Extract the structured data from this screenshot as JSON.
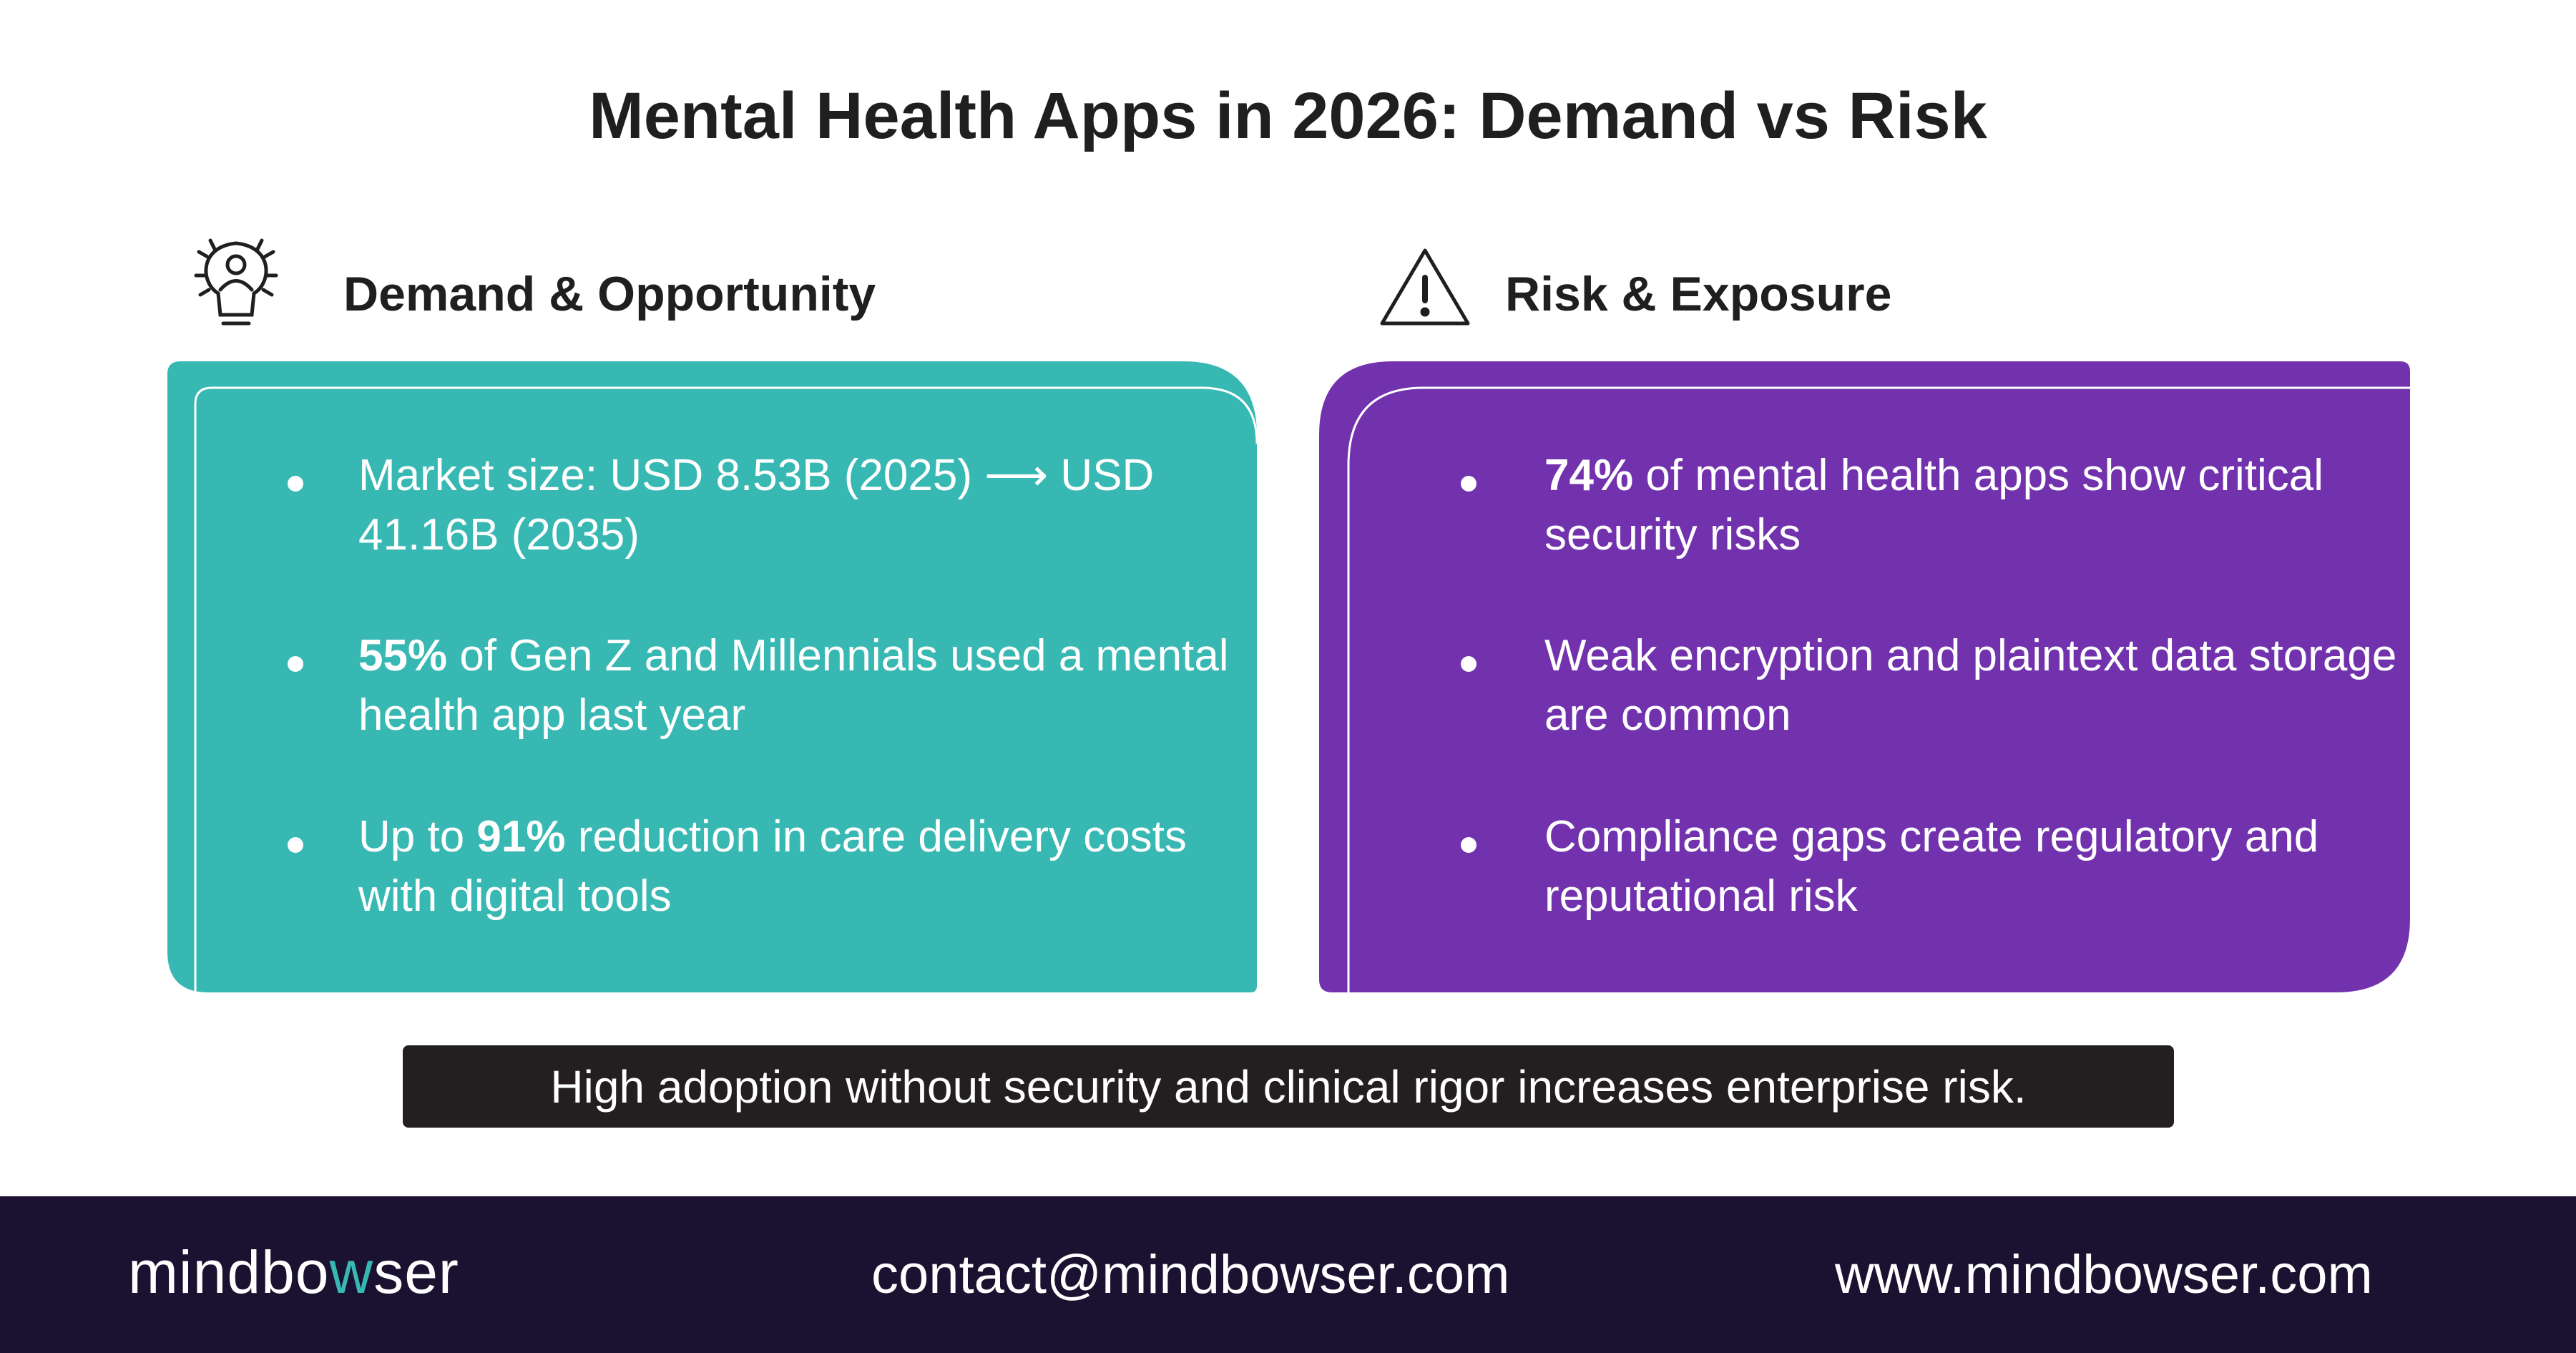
{
  "header": {
    "title": "Mental Health Apps in 2026: Demand vs Risk"
  },
  "sections": [
    {
      "heading": "Demand & Opportunity",
      "bullets": [
        [
          {
            "text": "Market size: USD 8.53B (2025) ⟶ USD 41.16B (2035)",
            "bold": false
          }
        ],
        [
          {
            "text": "55%",
            "bold": true
          },
          {
            "text": " of Gen Z and Millennials used a mental health app last year",
            "bold": false
          }
        ],
        [
          {
            "text": "Up to ",
            "bold": false
          },
          {
            "text": "91%",
            "bold": true
          },
          {
            "text": " reduction in care delivery costs with digital tools",
            "bold": false
          }
        ]
      ]
    },
    {
      "heading": "Risk & Exposure",
      "bullets": [
        [
          {
            "text": "74%",
            "bold": true
          },
          {
            "text": " of mental health apps show critical security risks",
            "bold": false
          }
        ],
        [
          {
            "text": "Weak encryption and plaintext data storage are common",
            "bold": false
          }
        ],
        [
          {
            "text": "Compliance gaps create regulatory and reputational risk",
            "bold": false
          }
        ]
      ]
    }
  ],
  "banner": "High adoption without security and clinical rigor increases enterprise risk.",
  "footer": {
    "logo": [
      "mindbo",
      "w",
      "ser"
    ],
    "email": "contact@mindbowser.com",
    "website": "www.mindbowser.com"
  }
}
